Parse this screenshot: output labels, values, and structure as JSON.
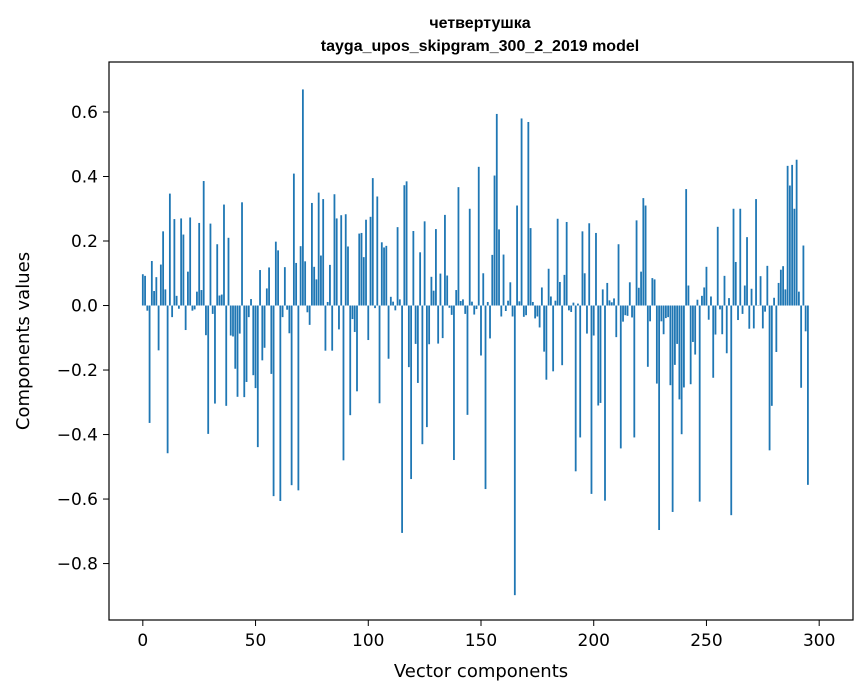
{
  "chart_data": {
    "type": "bar",
    "title_line1": "четвертушка",
    "title_line2": "tayga_upos_skipgram_300_2_2019 model",
    "xlabel": "Vector components",
    "ylabel": "Components values",
    "xlim": [
      -15,
      315
    ],
    "ylim": [
      -0.975,
      0.755
    ],
    "xticks": [
      0,
      50,
      100,
      150,
      200,
      250,
      300
    ],
    "xtick_labels": [
      "0",
      "50",
      "100",
      "150",
      "200",
      "250",
      "300"
    ],
    "yticks": [
      -0.8,
      -0.6,
      -0.4,
      -0.2,
      0.0,
      0.2,
      0.4,
      0.6
    ],
    "ytick_labels": [
      "−0.8",
      "−0.6",
      "−0.4",
      "−0.2",
      "0.0",
      "0.2",
      "0.4",
      "0.6"
    ],
    "bar_color": "#1f77b4",
    "values": [
      0.097,
      0.092,
      -0.016,
      -0.364,
      0.138,
      0.045,
      0.088,
      -0.139,
      0.127,
      0.23,
      0.05,
      -0.458,
      0.347,
      -0.036,
      0.268,
      0.03,
      -0.01,
      0.27,
      0.22,
      -0.076,
      0.105,
      0.273,
      -0.016,
      -0.012,
      0.043,
      0.256,
      0.048,
      0.386,
      -0.092,
      -0.398,
      0.254,
      -0.026,
      -0.304,
      0.19,
      0.031,
      0.034,
      0.313,
      -0.311,
      0.21,
      -0.093,
      -0.096,
      -0.196,
      -0.283,
      -0.087,
      0.32,
      -0.284,
      -0.237,
      -0.036,
      0.02,
      -0.216,
      -0.256,
      -0.439,
      0.11,
      -0.17,
      -0.131,
      0.053,
      0.118,
      -0.212,
      -0.591,
      0.198,
      0.171,
      -0.606,
      -0.036,
      0.119,
      -0.013,
      -0.086,
      -0.557,
      0.409,
      0.132,
      -0.573,
      0.184,
      0.67,
      0.137,
      -0.021,
      -0.06,
      0.318,
      0.12,
      0.081,
      0.35,
      0.155,
      0.33,
      -0.14,
      0.011,
      0.126,
      -0.14,
      0.345,
      0.27,
      -0.074,
      0.28,
      -0.48,
      0.283,
      0.183,
      -0.34,
      -0.042,
      -0.082,
      -0.266,
      0.223,
      0.225,
      0.15,
      0.266,
      -0.107,
      0.275,
      0.395,
      -0.008,
      0.338,
      -0.303,
      0.196,
      0.18,
      0.185,
      -0.165,
      0.027,
      0.012,
      -0.015,
      0.243,
      0.019,
      -0.705,
      0.373,
      0.385,
      -0.191,
      -0.538,
      0.231,
      -0.119,
      -0.24,
      0.165,
      -0.43,
      0.261,
      -0.377,
      -0.12,
      0.089,
      0.046,
      0.237,
      -0.118,
      0.099,
      -0.101,
      0.281,
      0.093,
      -0.007,
      -0.029,
      -0.479,
      0.048,
      0.367,
      0.014,
      0.019,
      -0.026,
      -0.339,
      0.3,
      0.012,
      -0.028,
      -0.011,
      0.43,
      -0.155,
      0.1,
      -0.569,
      0.011,
      -0.102,
      0.157,
      0.403,
      0.594,
      0.236,
      -0.034,
      0.158,
      -0.017,
      0.015,
      0.072,
      -0.034,
      -0.898,
      0.31,
      0.013,
      0.58,
      -0.035,
      -0.03,
      0.569,
      0.24,
      0.011,
      -0.04,
      -0.034,
      -0.068,
      0.056,
      -0.143,
      -0.23,
      0.114,
      0.028,
      -0.204,
      0.015,
      0.269,
      0.073,
      -0.185,
      0.095,
      0.259,
      -0.015,
      -0.02,
      0.009,
      -0.514,
      0.006,
      -0.409,
      0.23,
      0.1,
      -0.087,
      0.255,
      -0.584,
      -0.093,
      0.225,
      -0.31,
      -0.302,
      0.05,
      -0.605,
      0.07,
      0.016,
      0.01,
      0.022,
      -0.098,
      0.19,
      -0.443,
      -0.05,
      -0.03,
      -0.032,
      0.072,
      -0.037,
      -0.409,
      0.264,
      0.055,
      0.105,
      0.333,
      0.31,
      -0.19,
      -0.049,
      0.085,
      0.081,
      -0.242,
      -0.696,
      -0.049,
      -0.089,
      -0.039,
      -0.036,
      -0.247,
      -0.64,
      -0.184,
      -0.119,
      -0.291,
      -0.399,
      -0.254,
      0.361,
      0.062,
      -0.244,
      -0.113,
      -0.152,
      0.018,
      -0.608,
      0.03,
      0.056,
      0.12,
      -0.044,
      0.028,
      -0.224,
      -0.09,
      0.244,
      -0.012,
      -0.089,
      0.092,
      -0.148,
      0.023,
      -0.65,
      0.3,
      0.135,
      -0.045,
      0.3,
      -0.026,
      0.062,
      0.212,
      -0.072,
      0.052,
      -0.071,
      0.33,
      0.001,
      0.091,
      -0.071,
      -0.019,
      0.123,
      -0.449,
      -0.311,
      0.024,
      -0.144,
      0.07,
      0.111,
      0.122,
      0.05,
      0.433,
      0.372,
      0.436,
      0.3,
      0.452,
      0.043,
      -0.255,
      0.186,
      -0.08,
      -0.556
    ]
  }
}
